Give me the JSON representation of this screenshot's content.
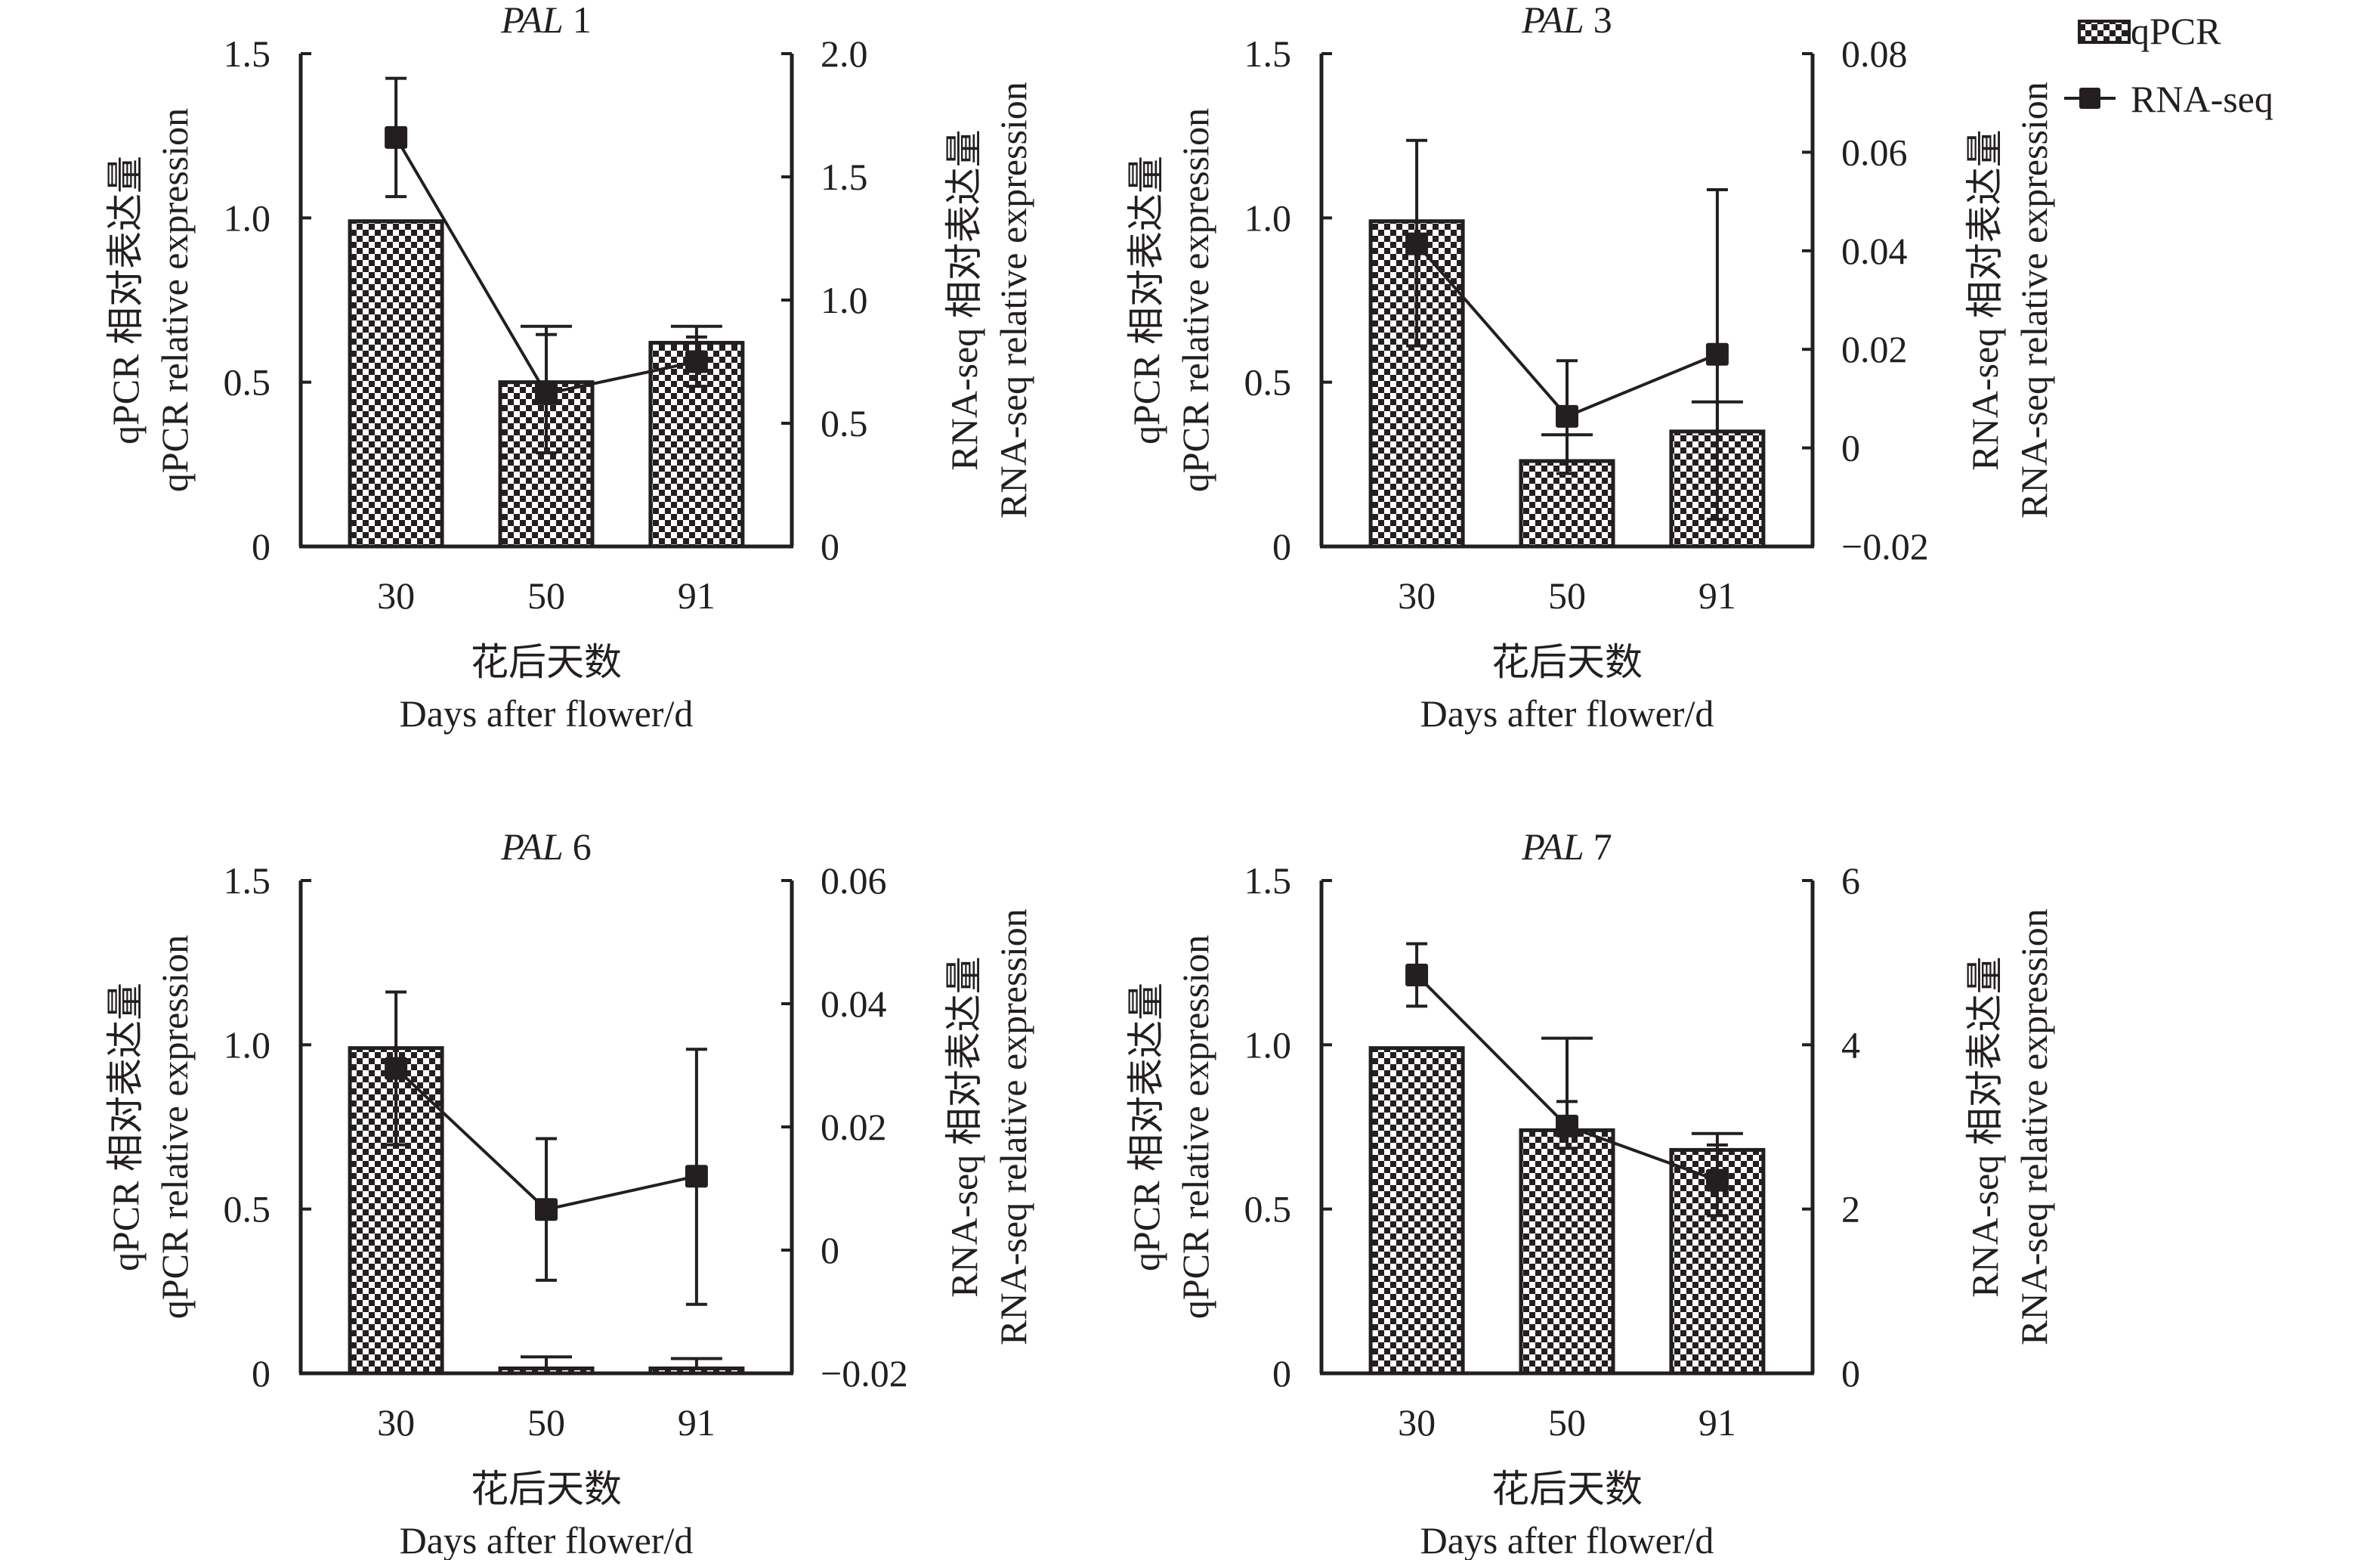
{
  "chart_data": [
    {
      "type": "bar+line",
      "title_gene": "PAL",
      "title_number": "1",
      "categories": [
        "30",
        "50",
        "91"
      ],
      "xlabel_cn": "花后天数",
      "xlabel_en": "Days after flower/d",
      "ylabel_left_cn": "qPCR 相对表达量",
      "ylabel_left_en": "qPCR relative expression",
      "ylabel_right_cn": "RNA-seq 相对表达量",
      "ylabel_right_en": "RNA-seq relative expression",
      "ylim_left": [
        0,
        1.5
      ],
      "yticks_left": [
        "0",
        "0.5",
        "1.0",
        "1.5"
      ],
      "ylim_right": [
        0,
        2.0
      ],
      "yticks_right": [
        "0",
        "0.5",
        "1.0",
        "1.5",
        "2.0"
      ],
      "series": [
        {
          "name": "qPCR",
          "axis": "left",
          "kind": "bar",
          "values": [
            0.99,
            0.5,
            0.62
          ],
          "err_upper": [
            0.99,
            0.67,
            0.67
          ],
          "err_lower": [
            0.99,
            0.5,
            0.62
          ]
        },
        {
          "name": "RNA-seq",
          "axis": "right",
          "kind": "line",
          "values": [
            1.66,
            0.62,
            0.75
          ],
          "err_upper": [
            1.9,
            0.86,
            0.85
          ],
          "err_lower": [
            1.42,
            0.38,
            0.65
          ]
        }
      ]
    },
    {
      "type": "bar+line",
      "title_gene": "PAL",
      "title_number": "3",
      "categories": [
        "30",
        "50",
        "91"
      ],
      "xlabel_cn": "花后天数",
      "xlabel_en": "Days after flower/d",
      "ylabel_left_cn": "qPCR 相对表达量",
      "ylabel_left_en": "qPCR relative expression",
      "ylabel_right_cn": "RNA-seq 相对表达量",
      "ylabel_right_en": "RNA-seq relative expression",
      "ylim_left": [
        0,
        1.5
      ],
      "yticks_left": [
        "0",
        "0.5",
        "1.0",
        "1.5"
      ],
      "ylim_right": [
        -0.02,
        0.08
      ],
      "yticks_right": [
        "−0.02",
        "0",
        "0.02",
        "0.04",
        "0.06",
        "0.08"
      ],
      "series": [
        {
          "name": "qPCR",
          "axis": "left",
          "kind": "bar",
          "values": [
            0.99,
            0.26,
            0.35
          ],
          "err_upper": [
            0.99,
            0.34,
            0.44
          ],
          "err_lower": [
            0.99,
            0.26,
            0.35
          ]
        },
        {
          "name": "RNA-seq",
          "axis": "right",
          "kind": "line",
          "values": [
            0.0414,
            0.0064,
            0.019
          ],
          "err_upper": [
            0.0624,
            0.0177,
            0.0524
          ],
          "err_lower": [
            0.0207,
            -0.0052,
            -0.0145
          ]
        }
      ]
    },
    {
      "type": "bar+line",
      "title_gene": "PAL",
      "title_number": "6",
      "categories": [
        "30",
        "50",
        "91"
      ],
      "xlabel_cn": "花后天数",
      "xlabel_en": "Days after flower/d",
      "ylabel_left_cn": "qPCR 相对表达量",
      "ylabel_left_en": "qPCR relative expression",
      "ylabel_right_cn": "RNA-seq 相对表达量",
      "ylabel_right_en": "RNA-seq relative expression",
      "ylim_left": [
        0,
        1.5
      ],
      "yticks_left": [
        "0",
        "0.5",
        "1.0",
        "1.5"
      ],
      "ylim_right": [
        -0.02,
        0.06
      ],
      "yticks_right": [
        "−0.02",
        "0",
        "0.02",
        "0.04",
        "0.06"
      ],
      "series": [
        {
          "name": "qPCR",
          "axis": "left",
          "kind": "bar",
          "values": [
            0.99,
            0.015,
            0.015
          ],
          "err_upper": [
            0.99,
            0.05,
            0.045
          ],
          "err_lower": [
            0.99,
            0.015,
            0.015
          ]
        },
        {
          "name": "RNA-seq",
          "axis": "right",
          "kind": "line",
          "values": [
            0.0295,
            0.0066,
            0.012
          ],
          "err_upper": [
            0.0419,
            0.0181,
            0.0326
          ],
          "err_lower": [
            0.0171,
            -0.0049,
            -0.0088
          ]
        }
      ]
    },
    {
      "type": "bar+line",
      "title_gene": "PAL",
      "title_number": "7",
      "categories": [
        "30",
        "50",
        "91"
      ],
      "xlabel_cn": "花后天数",
      "xlabel_en": "Days after flower/d",
      "ylabel_left_cn": "qPCR 相对表达量",
      "ylabel_left_en": "qPCR relative expression",
      "ylabel_right_cn": "RNA-seq 相对表达量",
      "ylabel_right_en": "RNA-seq relative expression",
      "ylim_left": [
        0,
        1.5
      ],
      "yticks_left": [
        "0",
        "0.5",
        "1.0",
        "1.5"
      ],
      "ylim_right": [
        0,
        6
      ],
      "yticks_right": [
        "0",
        "2",
        "4",
        "6"
      ],
      "series": [
        {
          "name": "qPCR",
          "axis": "left",
          "kind": "bar",
          "values": [
            0.99,
            0.74,
            0.68
          ],
          "err_upper": [
            0.99,
            1.02,
            0.73
          ],
          "err_lower": [
            0.99,
            0.74,
            0.68
          ]
        },
        {
          "name": "RNA-seq",
          "axis": "right",
          "kind": "line",
          "values": [
            4.85,
            3.01,
            2.35
          ],
          "err_upper": [
            5.23,
            3.31,
            2.78
          ],
          "err_lower": [
            4.47,
            2.74,
            1.92
          ]
        }
      ]
    }
  ],
  "legend": {
    "placement": "top-right",
    "items": [
      {
        "label": "qPCR",
        "icon": "checker-bar-swatch"
      },
      {
        "label": "RNA-seq",
        "icon": "line-square-marker"
      }
    ]
  },
  "colors": {
    "ink": "#231f20",
    "background": "#ffffff"
  }
}
